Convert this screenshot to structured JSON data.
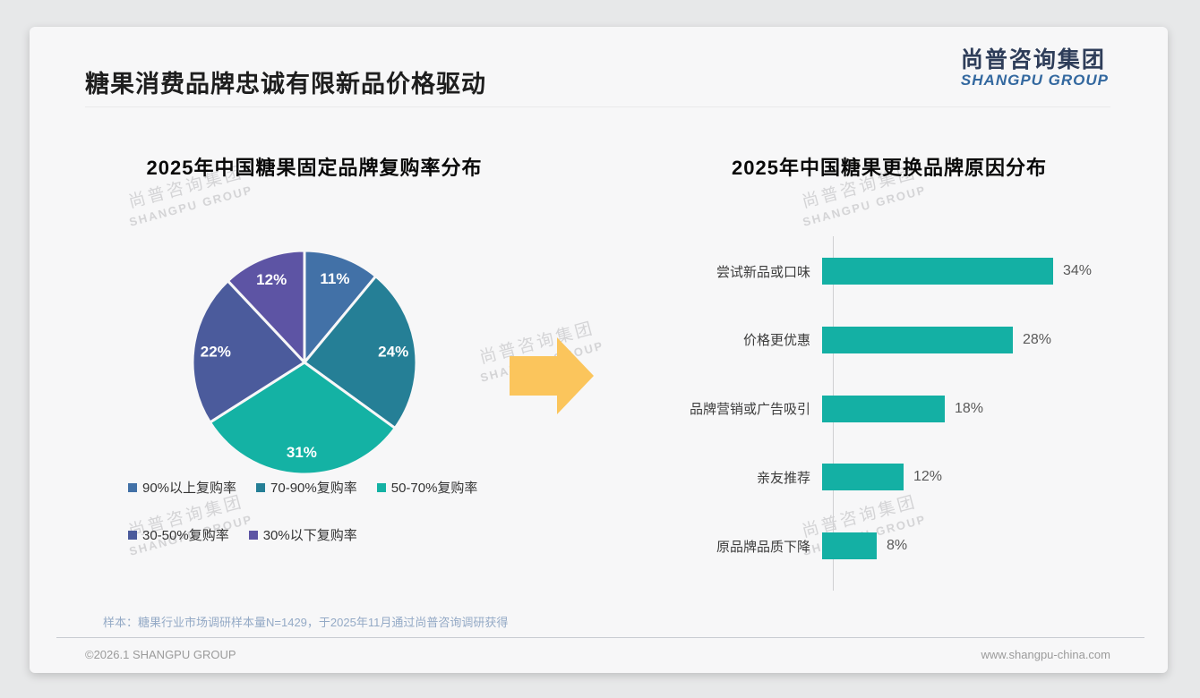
{
  "page": {
    "title": "糖果消费品牌忠诚有限新品价格驱动",
    "logo": {
      "cn": "尚普咨询集团",
      "en": "SHANGPU GROUP"
    },
    "watermark": {
      "cn": "尚普咨询集团",
      "en": "SHANGPU GROUP"
    },
    "footnote": "样本：糖果行业市场调研样本量N=1429，于2025年11月通过尚普咨询调研获得",
    "footer_left": "©2026.1 SHANGPU GROUP",
    "footer_right": "www.shangpu-china.com"
  },
  "colors": {
    "teal": "#14b0a4",
    "arrow": "#fbc55c"
  },
  "chart_data": [
    {
      "type": "pie",
      "title": "2025年中国糖果固定品牌复购率分布",
      "labels": [
        "90%以上复购率",
        "70-90%复购率",
        "50-70%复购率",
        "30-50%复购率",
        "30%以下复购率"
      ],
      "values": [
        11,
        24,
        31,
        22,
        12
      ],
      "data_labels": [
        "11%",
        "24%",
        "31%",
        "22%",
        "12%"
      ],
      "colors": [
        "#4271a7",
        "#257f96",
        "#14b2a4",
        "#4b5b9c",
        "#5d54a4"
      ],
      "start_angle": "12-oclock",
      "direction": "clockwise",
      "legend_position": "bottom"
    },
    {
      "type": "bar",
      "orientation": "horizontal",
      "title": "2025年中国糖果更换品牌原因分布",
      "categories": [
        "尝试新品或口味",
        "价格更优惠",
        "品牌营销或广告吸引",
        "亲友推荐",
        "原品牌品质下降"
      ],
      "values": [
        34,
        28,
        18,
        12,
        8
      ],
      "data_labels": [
        "34%",
        "28%",
        "18%",
        "12%",
        "8%"
      ],
      "bar_color": "#14b0a4",
      "xlim": [
        0,
        38
      ],
      "grid": false
    }
  ]
}
